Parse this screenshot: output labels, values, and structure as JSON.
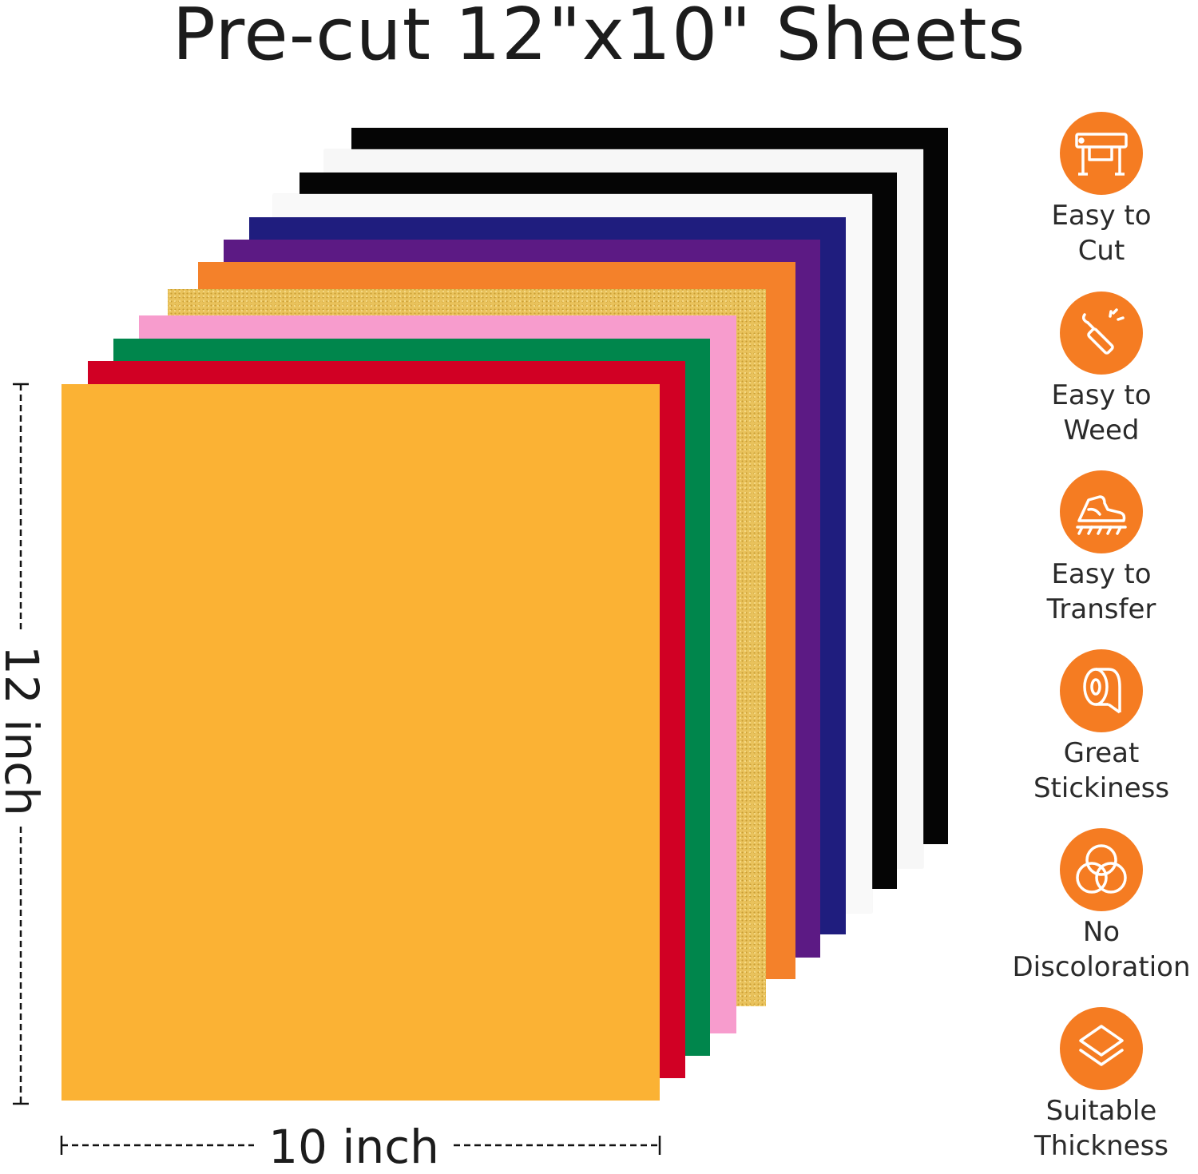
{
  "title": "Pre-cut 12\"x10\" Sheets",
  "sheet_colors": {
    "black": "#050505",
    "white": "#f7f7f7",
    "navy": "#1f1d7e",
    "purple": "#5c1a84",
    "orange": "#f4812a",
    "gold_glitter": "#e9c25c",
    "pink": "#f79ccd",
    "green": "#00864c",
    "red": "#d10024",
    "yellow": "#fbb234"
  },
  "dimensions": {
    "height_label": "12 inch",
    "width_label": "10 inch"
  },
  "accent_color": "#f57c22",
  "features": [
    {
      "icon": "cutter-plotter-icon",
      "line1": "Easy to",
      "line2": "Cut"
    },
    {
      "icon": "weeding-hook-icon",
      "line1": "Easy to",
      "line2": "Weed"
    },
    {
      "icon": "iron-transfer-icon",
      "line1": "Easy to",
      "line2": "Transfer"
    },
    {
      "icon": "tape-roll-icon",
      "line1": "Great",
      "line2": "Stickiness"
    },
    {
      "icon": "overlapping-circles-icon",
      "line1": "No",
      "line2": "Discoloration"
    },
    {
      "icon": "layers-icon",
      "line1": "Suitable",
      "line2": "Thickness"
    }
  ]
}
